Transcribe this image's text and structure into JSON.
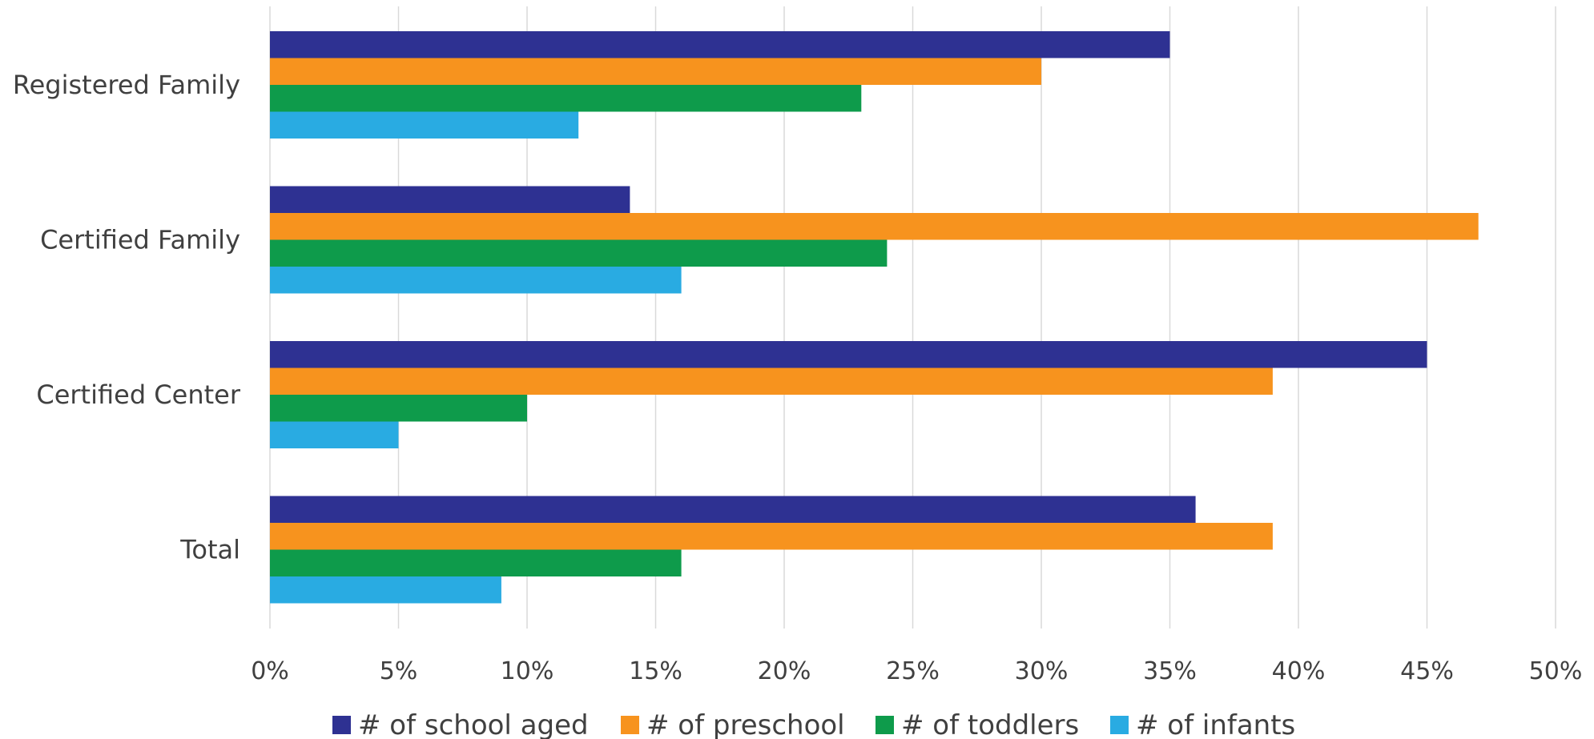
{
  "chart_data": {
    "type": "bar",
    "orientation": "horizontal",
    "categories": [
      "Registered Family",
      "Certified Family",
      "Certified Center",
      "Total"
    ],
    "series": [
      {
        "name": "# of school aged",
        "color": "#2E3192",
        "values": [
          35,
          14,
          45,
          36
        ]
      },
      {
        "name": "# of preschool",
        "color": "#F7931E",
        "values": [
          30,
          47,
          39,
          39
        ]
      },
      {
        "name": "# of toddlers",
        "color": "#0E9B4B",
        "values": [
          23,
          24,
          10,
          16
        ]
      },
      {
        "name": "# of infants",
        "color": "#29ABE2",
        "values": [
          12,
          16,
          5,
          9
        ]
      }
    ],
    "x_ticks": [
      "0%",
      "5%",
      "10%",
      "15%",
      "20%",
      "25%",
      "30%",
      "35%",
      "40%",
      "45%",
      "50%"
    ],
    "xlim": [
      0,
      50
    ],
    "unit": "%",
    "grid": "vertical",
    "legend_position": "bottom"
  }
}
